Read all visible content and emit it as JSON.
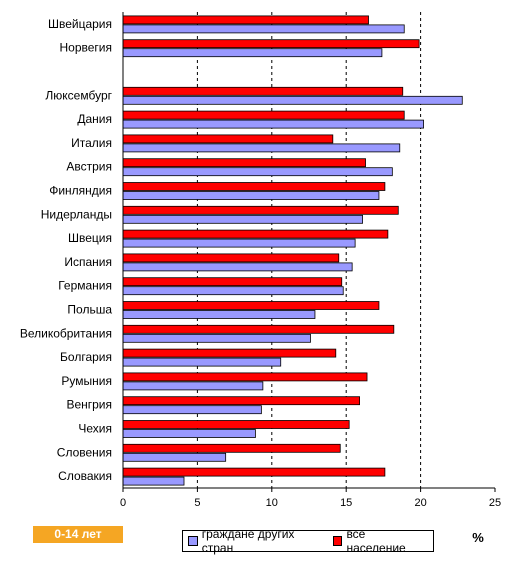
{
  "badge_text": "0-14 лет",
  "unit_label": "%",
  "colors": {
    "series_foreign": "#9999ff",
    "series_total": "#ff0000"
  },
  "chart_data": {
    "type": "bar",
    "orientation": "horizontal",
    "categories": [
      "Швейцария",
      "Норвегия",
      "",
      "Люксембург",
      "Дания",
      "Италия",
      "Австрия",
      "Финляндия",
      "Нидерланды",
      "Швеция",
      "Испания",
      "Германия",
      "Польша",
      "Великобритания",
      "Болгария",
      "Румыния",
      "Венгрия",
      "Чехия",
      "Словения",
      "Словакия"
    ],
    "series": [
      {
        "name": "все население",
        "color": "#ff0000",
        "values": [
          16.5,
          19.9,
          null,
          18.8,
          18.9,
          14.1,
          16.3,
          17.6,
          18.5,
          17.8,
          14.5,
          14.7,
          17.2,
          18.2,
          14.3,
          16.4,
          15.9,
          15.2,
          14.6,
          17.6
        ]
      },
      {
        "name": "граждане других стран",
        "color": "#9999ff",
        "values": [
          18.9,
          17.4,
          null,
          22.8,
          20.2,
          18.6,
          18.1,
          17.2,
          16.1,
          15.6,
          15.4,
          14.8,
          12.9,
          12.6,
          10.6,
          9.4,
          9.3,
          8.9,
          6.9,
          4.1
        ]
      }
    ],
    "legend_order": [
      "граждане других стран",
      "все население"
    ],
    "xlim": [
      0,
      25
    ],
    "xticks": [
      0,
      5,
      10,
      15,
      20,
      25
    ],
    "gridlines": "dashed vertical",
    "legend_position": "bottom"
  }
}
